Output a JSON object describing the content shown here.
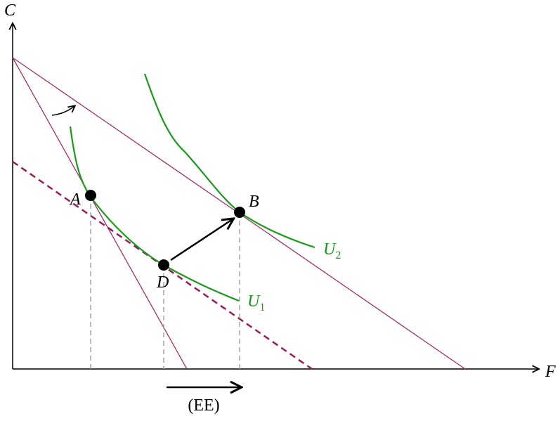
{
  "axes": {
    "y_label": "C",
    "x_label": "F"
  },
  "points": [
    {
      "label": "A"
    },
    {
      "label": "B"
    },
    {
      "label": "D"
    }
  ],
  "curves": [
    {
      "letter": "U",
      "subscript": "1"
    },
    {
      "letter": "U",
      "subscript": "2"
    }
  ],
  "shift_label": "(EE)"
}
